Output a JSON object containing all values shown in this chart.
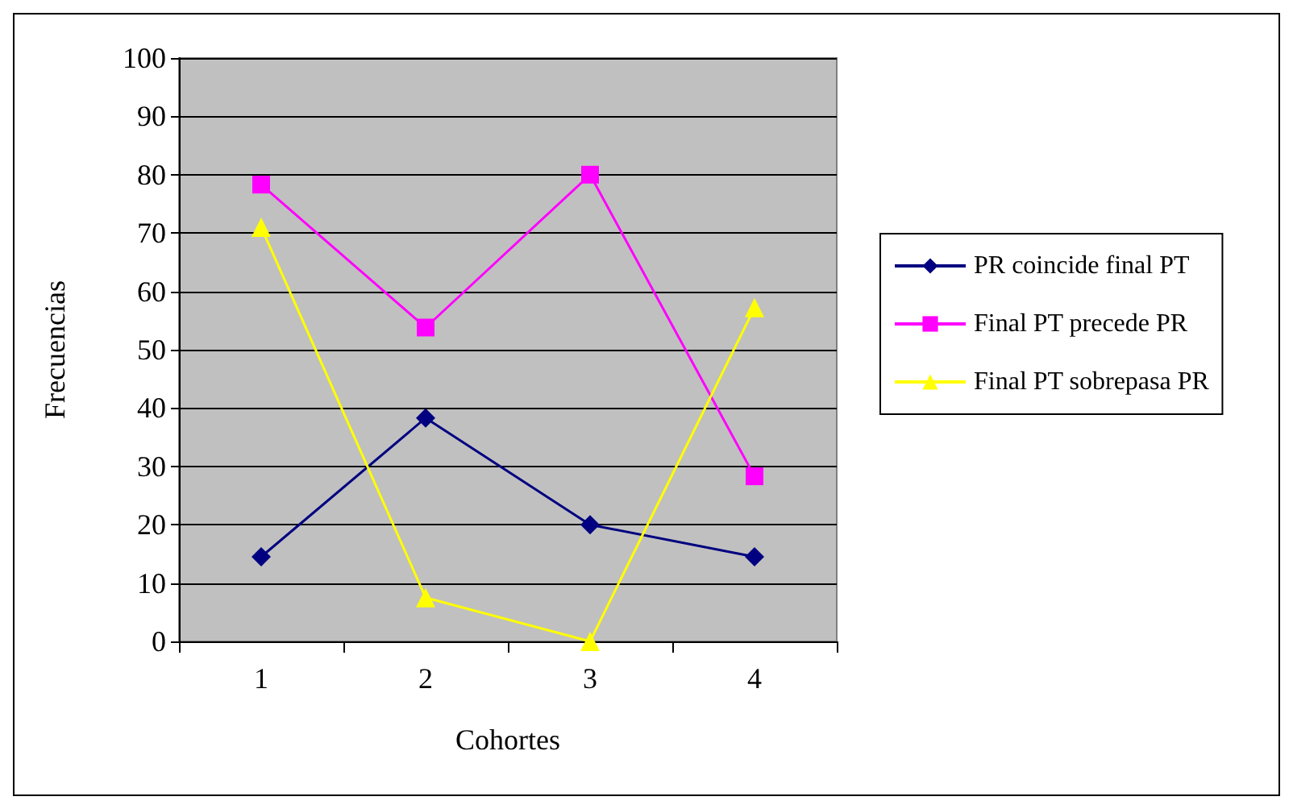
{
  "chart_data": {
    "type": "line",
    "xlabel": "Cohortes",
    "ylabel": "Frecuencias",
    "categories": [
      "1",
      "2",
      "3",
      "4"
    ],
    "series": [
      {
        "name": "PR coincide final PT",
        "color": "#000080",
        "marker": "diamond",
        "values": [
          14.5,
          38.3,
          20,
          14.5
        ]
      },
      {
        "name": "Final PT precede PR",
        "color": "#ff00ff",
        "marker": "square",
        "values": [
          78.3,
          53.8,
          80,
          28.3
        ]
      },
      {
        "name": "Final PT sobrepasa PR",
        "color": "#ffff00",
        "marker": "triangle",
        "values": [
          71,
          7.5,
          0,
          57.2
        ]
      }
    ],
    "ylim": [
      0,
      100
    ],
    "yticks": [
      0,
      10,
      20,
      30,
      40,
      50,
      60,
      70,
      80,
      90,
      100
    ],
    "grid": "y",
    "legend": "right",
    "line_style": "solid"
  }
}
